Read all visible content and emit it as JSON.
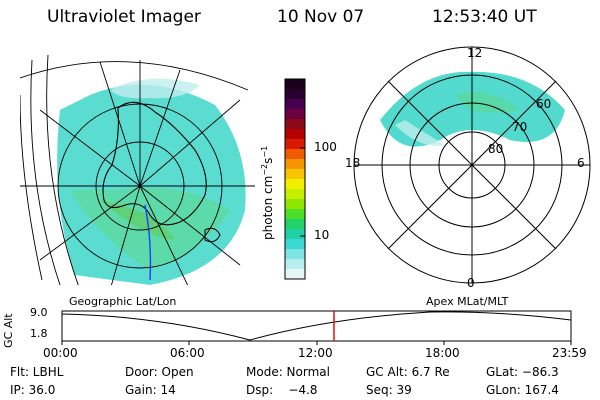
{
  "header": {
    "instrument": "Ultraviolet Imager",
    "date": "10 Nov 07",
    "time": "12:53:40 UT"
  },
  "colorbar": {
    "unit": "photon cm",
    "unit_exp1": "−2",
    "unit_s": "s",
    "unit_exp2": "−1",
    "ticks": [
      "100",
      "10"
    ],
    "colors": [
      "#1a0018",
      "#2a0030",
      "#46004f",
      "#6a0040",
      "#8a0a1a",
      "#b50000",
      "#d91a00",
      "#f05a00",
      "#f79400",
      "#f6c400",
      "#f3ee00",
      "#c6ef00",
      "#8fe600",
      "#4dde2a",
      "#22d36a",
      "#1fd0a8",
      "#39d8d0",
      "#7ee4e4",
      "#b9eeee",
      "#e6f6f6"
    ]
  },
  "polar_plot": {
    "top_label": "12",
    "bottom_label": "0",
    "left_label": "18",
    "right_label": "6",
    "lat_labels": [
      "60",
      "70",
      "80"
    ]
  },
  "map_labels": {
    "left": "Geographic Lat/Lon",
    "right": "Apex MLat/MLT"
  },
  "timeline": {
    "ylabel": "GC Alt",
    "ymax": "9.0",
    "ymin": "1.8",
    "ticks": [
      "00:00",
      "06:00",
      "12:00",
      "18:00",
      "23:59"
    ],
    "marker_time": "12:53",
    "marker_color": "#e00000"
  },
  "info": {
    "row1": {
      "flt": "Flt: LBHL",
      "door": "Door: Open",
      "mode": "Mode: Normal",
      "gcalt": "GC Alt: 6.7 Re",
      "glat": "GLat: −86.3"
    },
    "row2": {
      "ip": "IP: 36.0",
      "gain": "Gain: 14",
      "dsp": "Dsp:    −4.8",
      "seq": "Seq: 39",
      "glon": "GLon: 167.4"
    }
  }
}
